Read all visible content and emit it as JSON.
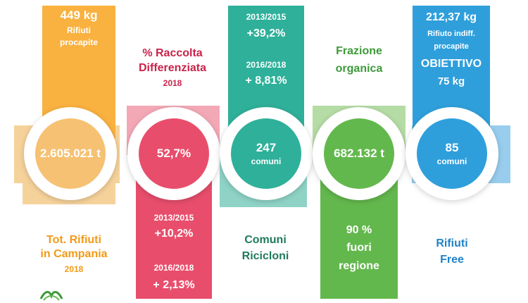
{
  "colors": {
    "orange": "#f9b13f",
    "orange_light": "#f6d29b",
    "red": "#e84e6c",
    "red_light": "#f3a8b6",
    "teal": "#2fb09a",
    "teal_light": "#8fd3c6",
    "green": "#63b84d",
    "green_light": "#b4dca4",
    "blue": "#2f9fdc",
    "blue_light": "#98cdee",
    "title_red": "#c8234a",
    "title_green": "#3d9a3a",
    "title_teal": "#1f7a5d",
    "title_blue": "#1f83c7",
    "title_orange": "#f29a17"
  },
  "col1": {
    "top_value": "449 kg",
    "top_line1": "Rifiuti",
    "top_line2": "procapite",
    "circle_value": "2.605.021 t",
    "bottom_line1": "Tot. Rifiuti",
    "bottom_line2": "in Campania",
    "bottom_year": "2018"
  },
  "col2": {
    "title_line1": "% Raccolta",
    "title_line2": "Differenziata",
    "title_year": "2018",
    "circle_value": "52,7%",
    "stat1_period": "2013/2015",
    "stat1_value": "+10,2%",
    "stat2_period": "2016/2018",
    "stat2_value": "+ 2,13%"
  },
  "col3": {
    "stat1_period": "2013/2015",
    "stat1_value": "+39,2%",
    "stat2_period": "2016/2018",
    "stat2_value": "+ 8,81%",
    "circle_value": "247",
    "circle_unit": "comuni",
    "bottom_line1": "Comuni",
    "bottom_line2": "Ricicloni"
  },
  "col4": {
    "title_line1": "Frazione",
    "title_line2": "organica",
    "circle_value": "682.132 t",
    "bottom_line1": "90 %",
    "bottom_line2": "fuori",
    "bottom_line3": "regione"
  },
  "col5": {
    "top_value": "212,37 kg",
    "top_line1": "Rifiuto indiff.",
    "top_line2": "procapite",
    "top_line3": "OBIETTIVO",
    "top_line4": "75 kg",
    "circle_value": "85",
    "circle_unit": "comuni",
    "bottom_line1": "Rifiuti",
    "bottom_line2": "Free"
  },
  "logo_icon": "regione-campania-logo-icon"
}
